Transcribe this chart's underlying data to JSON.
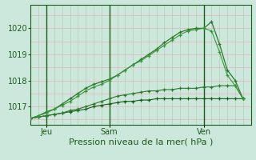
{
  "bg_color": "#cce8dc",
  "plot_bg_color": "#cce8dc",
  "grid_color_h": "#e8b8b8",
  "grid_color_v": "#b8ccb8",
  "line_color_dark": "#1a5c1a",
  "line_color_mid": "#2d7a2d",
  "line_color_light": "#3a963a",
  "xlabel": "Pression niveau de la mer( hPa )",
  "xlabel_fontsize": 8,
  "yticks": [
    1017,
    1018,
    1019,
    1020
  ],
  "xtick_labels": [
    "Jeu",
    "Sam",
    "Ven"
  ],
  "xtick_positions": [
    2,
    10,
    22
  ],
  "ylim": [
    1016.3,
    1020.9
  ],
  "xlim": [
    0,
    28
  ],
  "series_flat1": [
    1016.55,
    1016.6,
    1016.65,
    1016.7,
    1016.75,
    1016.8,
    1016.85,
    1016.9,
    1017.0,
    1017.05,
    1017.1,
    1017.15,
    1017.2,
    1017.2,
    1017.25,
    1017.25,
    1017.3,
    1017.3,
    1017.3,
    1017.3,
    1017.3,
    1017.3,
    1017.3,
    1017.3,
    1017.3,
    1017.3,
    1017.3,
    1017.3
  ],
  "series_flat2": [
    1016.55,
    1016.6,
    1016.65,
    1016.7,
    1016.75,
    1016.85,
    1016.9,
    1017.0,
    1017.1,
    1017.2,
    1017.3,
    1017.4,
    1017.45,
    1017.5,
    1017.55,
    1017.6,
    1017.6,
    1017.65,
    1017.65,
    1017.7,
    1017.7,
    1017.7,
    1017.75,
    1017.75,
    1017.8,
    1017.8,
    1017.8,
    1017.3
  ],
  "series_rise1": [
    1016.55,
    1016.65,
    1016.8,
    1016.9,
    1017.1,
    1017.3,
    1017.5,
    1017.7,
    1017.85,
    1017.95,
    1018.05,
    1018.2,
    1018.4,
    1018.6,
    1018.8,
    1019.0,
    1019.2,
    1019.45,
    1019.65,
    1019.85,
    1019.95,
    1020.0,
    1020.0,
    1020.25,
    1019.4,
    1018.4,
    1018.0,
    1017.3
  ],
  "series_rise2": [
    1016.55,
    1016.65,
    1016.75,
    1016.9,
    1017.05,
    1017.2,
    1017.4,
    1017.6,
    1017.75,
    1017.85,
    1018.0,
    1018.2,
    1018.4,
    1018.6,
    1018.75,
    1018.95,
    1019.15,
    1019.35,
    1019.55,
    1019.75,
    1019.9,
    1019.95,
    1020.0,
    1019.9,
    1019.1,
    1018.2,
    1017.8,
    1017.3
  ]
}
